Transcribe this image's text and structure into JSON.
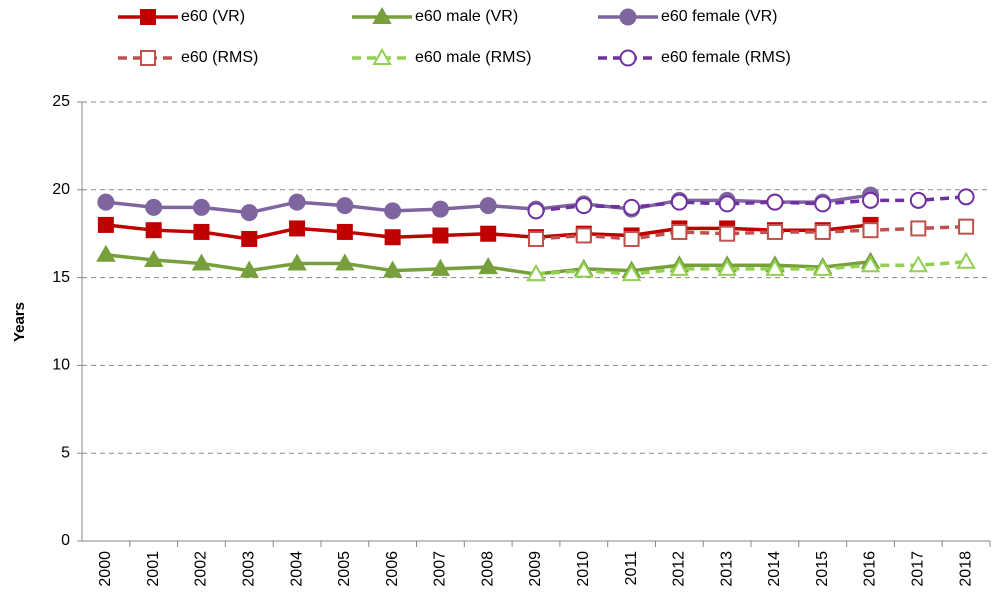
{
  "chart_data": {
    "type": "line",
    "y_label": "Years",
    "categories": [
      "2000",
      "2001",
      "2002",
      "2003",
      "2004",
      "2005",
      "2006",
      "2007",
      "2008",
      "2009",
      "2010",
      "2011",
      "2012",
      "2013",
      "2014",
      "2015",
      "2016",
      "2017",
      "2018"
    ],
    "ylim": [
      0,
      25
    ],
    "yticks": [
      0,
      5,
      10,
      15,
      20,
      25
    ],
    "grid": true,
    "series": [
      {
        "name": "e60 (VR)",
        "color": "#c00000",
        "marker": "square",
        "filled": true,
        "dashed": false,
        "values": [
          18.0,
          17.7,
          17.6,
          17.2,
          17.8,
          17.6,
          17.3,
          17.4,
          17.5,
          17.3,
          17.5,
          17.4,
          17.8,
          17.8,
          17.7,
          17.7,
          18.0,
          null,
          null
        ]
      },
      {
        "name": "e60 male (VR)",
        "color": "#77a03c",
        "marker": "triangle",
        "filled": true,
        "dashed": false,
        "values": [
          16.3,
          16.0,
          15.8,
          15.4,
          15.8,
          15.8,
          15.4,
          15.5,
          15.6,
          15.2,
          15.5,
          15.4,
          15.7,
          15.7,
          15.7,
          15.6,
          15.9,
          null,
          null
        ]
      },
      {
        "name": "e60 female (VR)",
        "color": "#7f659f",
        "marker": "circle",
        "filled": true,
        "dashed": false,
        "values": [
          19.3,
          19.0,
          19.0,
          18.7,
          19.3,
          19.1,
          18.8,
          18.9,
          19.1,
          18.9,
          19.2,
          18.9,
          19.4,
          19.4,
          19.3,
          19.3,
          19.7,
          null,
          null
        ]
      },
      {
        "name": "e60 (RMS)",
        "color": "#c0504d",
        "marker": "square",
        "filled": false,
        "dashed": true,
        "values": [
          null,
          null,
          null,
          null,
          null,
          null,
          null,
          null,
          null,
          17.2,
          17.4,
          17.2,
          17.6,
          17.5,
          17.6,
          17.6,
          17.7,
          17.8,
          17.9
        ]
      },
      {
        "name": "e60 male (RMS)",
        "color": "#92d050",
        "marker": "triangle",
        "filled": false,
        "dashed": true,
        "values": [
          null,
          null,
          null,
          null,
          null,
          null,
          null,
          null,
          null,
          15.2,
          15.4,
          15.2,
          15.5,
          15.5,
          15.5,
          15.5,
          15.7,
          15.7,
          15.9
        ]
      },
      {
        "name": "e60 female (RMS)",
        "color": "#7030a0",
        "marker": "circle",
        "filled": false,
        "dashed": true,
        "values": [
          null,
          null,
          null,
          null,
          null,
          null,
          null,
          null,
          null,
          18.8,
          19.1,
          19.0,
          19.3,
          19.2,
          19.3,
          19.2,
          19.4,
          19.4,
          19.6
        ]
      }
    ]
  }
}
